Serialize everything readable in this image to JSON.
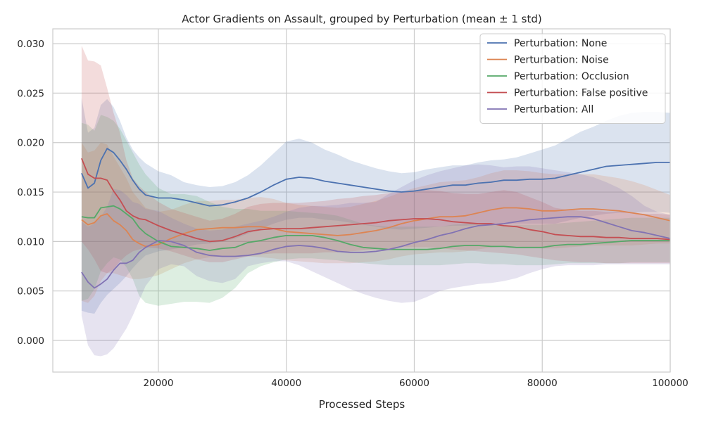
{
  "chart_data": {
    "type": "line",
    "title": "Actor Gradients on Assault, grouped by Perturbation (mean ± 1 std)",
    "xlabel": "Processed Steps",
    "ylabel": "",
    "xlim": [
      3500,
      100000
    ],
    "ylim": [
      -0.0032,
      0.0315
    ],
    "xticks": [
      20000,
      40000,
      60000,
      80000,
      100000
    ],
    "xtick_labels": [
      "20000",
      "40000",
      "60000",
      "80000",
      "100000"
    ],
    "yticks": [
      0.0,
      0.005,
      0.01,
      0.015,
      0.02,
      0.025,
      0.03
    ],
    "ytick_labels": [
      "0.000",
      "0.005",
      "0.010",
      "0.015",
      "0.020",
      "0.025",
      "0.030"
    ],
    "grid": true,
    "legend_position": "top-right",
    "x": [
      8000,
      9000,
      10000,
      11000,
      12000,
      13000,
      14000,
      15000,
      16000,
      17000,
      18000,
      20000,
      22000,
      24000,
      26000,
      28000,
      30000,
      32000,
      34000,
      36000,
      38000,
      40000,
      42000,
      44000,
      46000,
      48000,
      50000,
      52000,
      54000,
      56000,
      58000,
      60000,
      62000,
      64000,
      66000,
      68000,
      70000,
      72000,
      74000,
      76000,
      78000,
      80000,
      82000,
      84000,
      86000,
      88000,
      90000,
      92000,
      94000,
      96000,
      98000,
      100000
    ],
    "series": [
      {
        "name": "Perturbation: None",
        "color": "#4c72b0",
        "mean": [
          0.0169,
          0.0154,
          0.0159,
          0.0182,
          0.0194,
          0.019,
          0.0182,
          0.0173,
          0.0162,
          0.0153,
          0.0147,
          0.0144,
          0.0144,
          0.0142,
          0.0139,
          0.0136,
          0.0137,
          0.014,
          0.0144,
          0.015,
          0.0157,
          0.0163,
          0.0165,
          0.0164,
          0.0161,
          0.0159,
          0.0157,
          0.0155,
          0.0153,
          0.0151,
          0.015,
          0.0151,
          0.0153,
          0.0155,
          0.0157,
          0.0157,
          0.0159,
          0.016,
          0.0162,
          0.0162,
          0.0163,
          0.0163,
          0.0164,
          0.0167,
          0.017,
          0.0173,
          0.0176,
          0.0177,
          0.0178,
          0.0179,
          0.018,
          0.018
        ],
        "lower": [
          0.003,
          0.0028,
          0.0027,
          0.0038,
          0.0046,
          0.0052,
          0.0058,
          0.0065,
          0.0073,
          0.008,
          0.0086,
          0.009,
          0.0092,
          0.0094,
          0.0097,
          0.0098,
          0.01,
          0.0103,
          0.0108,
          0.0113,
          0.0118,
          0.0122,
          0.0124,
          0.0124,
          0.0122,
          0.0121,
          0.0119,
          0.0117,
          0.0115,
          0.0113,
          0.0112,
          0.0113,
          0.0114,
          0.0115,
          0.0116,
          0.0116,
          0.0117,
          0.0117,
          0.0118,
          0.0118,
          0.0118,
          0.0118,
          0.0118,
          0.0121,
          0.0124,
          0.0126,
          0.0128,
          0.0129,
          0.0129,
          0.013,
          0.013,
          0.0129
        ],
        "upper": [
          0.0245,
          0.021,
          0.0215,
          0.0238,
          0.0244,
          0.0236,
          0.0222,
          0.0205,
          0.0193,
          0.0185,
          0.0179,
          0.0171,
          0.0167,
          0.016,
          0.0157,
          0.0155,
          0.0156,
          0.016,
          0.0167,
          0.0177,
          0.0189,
          0.0201,
          0.0204,
          0.02,
          0.0193,
          0.0188,
          0.0182,
          0.0178,
          0.0174,
          0.0171,
          0.0169,
          0.017,
          0.0173,
          0.0175,
          0.0177,
          0.0177,
          0.018,
          0.0182,
          0.0183,
          0.0185,
          0.0189,
          0.0193,
          0.0197,
          0.0204,
          0.0211,
          0.0216,
          0.0222,
          0.0227,
          0.023,
          0.0231,
          0.0231,
          0.023
        ]
      },
      {
        "name": "Perturbation: Noise",
        "color": "#dd8452",
        "mean": [
          0.0122,
          0.0117,
          0.0119,
          0.0126,
          0.0128,
          0.0121,
          0.0117,
          0.0111,
          0.0102,
          0.0098,
          0.0095,
          0.0097,
          0.0103,
          0.0108,
          0.0112,
          0.0113,
          0.0114,
          0.0114,
          0.0115,
          0.0115,
          0.0113,
          0.011,
          0.0109,
          0.0108,
          0.0107,
          0.0106,
          0.0107,
          0.0109,
          0.0111,
          0.0114,
          0.0118,
          0.0121,
          0.0123,
          0.0125,
          0.0125,
          0.0126,
          0.0129,
          0.0132,
          0.0134,
          0.0134,
          0.0133,
          0.0131,
          0.0131,
          0.0132,
          0.0133,
          0.0133,
          0.0132,
          0.0131,
          0.0129,
          0.0127,
          0.0124,
          0.0121
        ],
        "lower": [
          0.004,
          0.0038,
          0.0045,
          0.006,
          0.0068,
          0.0068,
          0.0066,
          0.0064,
          0.0062,
          0.0062,
          0.0063,
          0.0066,
          0.0072,
          0.0078,
          0.0082,
          0.0084,
          0.0085,
          0.0085,
          0.0085,
          0.0084,
          0.0083,
          0.0081,
          0.008,
          0.0079,
          0.0078,
          0.0078,
          0.0078,
          0.0079,
          0.008,
          0.0082,
          0.0085,
          0.0087,
          0.0088,
          0.0089,
          0.0089,
          0.009,
          0.0092,
          0.0094,
          0.0095,
          0.0095,
          0.0094,
          0.0093,
          0.0093,
          0.0094,
          0.0095,
          0.0096,
          0.0096,
          0.0096,
          0.0096,
          0.0097,
          0.0098,
          0.0098
        ],
        "upper": [
          0.02,
          0.019,
          0.0192,
          0.02,
          0.0198,
          0.0186,
          0.0175,
          0.0164,
          0.015,
          0.0142,
          0.0134,
          0.013,
          0.0132,
          0.0137,
          0.0141,
          0.0141,
          0.0142,
          0.0142,
          0.0144,
          0.0145,
          0.0143,
          0.0139,
          0.0137,
          0.0136,
          0.0135,
          0.0134,
          0.0135,
          0.0138,
          0.0141,
          0.0145,
          0.015,
          0.0154,
          0.0157,
          0.016,
          0.0161,
          0.0162,
          0.0165,
          0.0169,
          0.0172,
          0.0172,
          0.0171,
          0.0169,
          0.0168,
          0.0168,
          0.0168,
          0.0168,
          0.0166,
          0.0164,
          0.0161,
          0.0157,
          0.0152,
          0.0147
        ]
      },
      {
        "name": "Perturbation: Occlusion",
        "color": "#55a868",
        "mean": [
          0.0125,
          0.0124,
          0.0124,
          0.0134,
          0.0135,
          0.0136,
          0.0133,
          0.0128,
          0.0123,
          0.0114,
          0.0108,
          0.01,
          0.0095,
          0.0094,
          0.0093,
          0.0091,
          0.0093,
          0.0094,
          0.0099,
          0.0101,
          0.0104,
          0.0106,
          0.0106,
          0.0106,
          0.0104,
          0.0101,
          0.0097,
          0.0094,
          0.0093,
          0.0092,
          0.0092,
          0.0092,
          0.0092,
          0.0093,
          0.0095,
          0.0096,
          0.0096,
          0.0095,
          0.0095,
          0.0094,
          0.0094,
          0.0094,
          0.0096,
          0.0097,
          0.0097,
          0.0098,
          0.0099,
          0.01,
          0.0101,
          0.0101,
          0.0101,
          0.0101
        ],
        "lower": [
          0.004,
          0.0042,
          0.0052,
          0.007,
          0.0078,
          0.0084,
          0.0082,
          0.0074,
          0.0062,
          0.0045,
          0.0038,
          0.0035,
          0.0037,
          0.0039,
          0.0039,
          0.0038,
          0.0043,
          0.0053,
          0.0068,
          0.0075,
          0.0079,
          0.0082,
          0.0083,
          0.0083,
          0.0082,
          0.0081,
          0.0079,
          0.0078,
          0.0077,
          0.0076,
          0.0076,
          0.0076,
          0.0076,
          0.0076,
          0.0077,
          0.0078,
          0.0078,
          0.0077,
          0.0077,
          0.0076,
          0.0076,
          0.0076,
          0.0077,
          0.0078,
          0.0078,
          0.0078,
          0.0078,
          0.0078,
          0.0079,
          0.0079,
          0.0079,
          0.0079
        ],
        "upper": [
          0.022,
          0.0218,
          0.0212,
          0.0228,
          0.0226,
          0.0222,
          0.0214,
          0.0202,
          0.019,
          0.0178,
          0.0168,
          0.0154,
          0.0148,
          0.0148,
          0.0146,
          0.014,
          0.0135,
          0.0133,
          0.0133,
          0.0131,
          0.0131,
          0.0131,
          0.013,
          0.0129,
          0.0128,
          0.0126,
          0.0122,
          0.0118,
          0.0116,
          0.0115,
          0.0115,
          0.0115,
          0.0115,
          0.0115,
          0.0117,
          0.0118,
          0.0118,
          0.0117,
          0.0117,
          0.0117,
          0.0117,
          0.0117,
          0.0118,
          0.0119,
          0.012,
          0.0121,
          0.0122,
          0.0123,
          0.0124,
          0.0124,
          0.0124,
          0.0124
        ]
      },
      {
        "name": "Perturbation: False positive",
        "color": "#c44e52",
        "mean": [
          0.0184,
          0.0168,
          0.0164,
          0.0164,
          0.0162,
          0.0151,
          0.0142,
          0.0131,
          0.0126,
          0.0123,
          0.0122,
          0.0116,
          0.0111,
          0.0107,
          0.0103,
          0.01,
          0.0101,
          0.0105,
          0.011,
          0.0112,
          0.0113,
          0.0113,
          0.0113,
          0.0114,
          0.0115,
          0.0116,
          0.0117,
          0.0118,
          0.0119,
          0.0121,
          0.0122,
          0.0123,
          0.0123,
          0.0122,
          0.012,
          0.0119,
          0.0118,
          0.0118,
          0.0116,
          0.0115,
          0.0112,
          0.011,
          0.0107,
          0.0106,
          0.0105,
          0.0105,
          0.0104,
          0.0104,
          0.0103,
          0.0103,
          0.0103,
          0.0102
        ],
        "lower": [
          0.01,
          0.0092,
          0.0082,
          0.007,
          0.0068,
          0.0072,
          0.008,
          0.0086,
          0.009,
          0.0092,
          0.0094,
          0.0093,
          0.009,
          0.0086,
          0.0082,
          0.0079,
          0.0079,
          0.0082,
          0.0085,
          0.0087,
          0.0088,
          0.0088,
          0.0088,
          0.0088,
          0.0089,
          0.0089,
          0.009,
          0.0091,
          0.0092,
          0.0093,
          0.0094,
          0.0094,
          0.0094,
          0.0093,
          0.0092,
          0.0091,
          0.009,
          0.0089,
          0.0088,
          0.0087,
          0.0085,
          0.0083,
          0.0081,
          0.008,
          0.0079,
          0.0079,
          0.0078,
          0.0078,
          0.0078,
          0.0078,
          0.0078,
          0.0078
        ],
        "upper": [
          0.0298,
          0.0283,
          0.0282,
          0.0278,
          0.0255,
          0.023,
          0.021,
          0.0182,
          0.0164,
          0.0156,
          0.015,
          0.014,
          0.0133,
          0.0129,
          0.0125,
          0.0121,
          0.0123,
          0.0128,
          0.0135,
          0.0138,
          0.0139,
          0.0139,
          0.0139,
          0.014,
          0.0141,
          0.0143,
          0.0144,
          0.0146,
          0.0147,
          0.0149,
          0.015,
          0.0151,
          0.0152,
          0.0151,
          0.0149,
          0.0148,
          0.0148,
          0.015,
          0.0152,
          0.015,
          0.0145,
          0.014,
          0.0134,
          0.0132,
          0.0131,
          0.0131,
          0.013,
          0.013,
          0.0129,
          0.0128,
          0.0128,
          0.0127
        ]
      },
      {
        "name": "Perturbation: All",
        "color": "#8172b3",
        "mean": [
          0.0069,
          0.0059,
          0.0053,
          0.0057,
          0.0062,
          0.0071,
          0.0078,
          0.0078,
          0.0081,
          0.0089,
          0.0094,
          0.0101,
          0.01,
          0.0096,
          0.0089,
          0.0086,
          0.0085,
          0.0085,
          0.0086,
          0.0088,
          0.0092,
          0.0095,
          0.0096,
          0.0095,
          0.0093,
          0.009,
          0.0089,
          0.0089,
          0.009,
          0.0092,
          0.0095,
          0.0099,
          0.0102,
          0.0106,
          0.0109,
          0.0113,
          0.0116,
          0.0117,
          0.0118,
          0.012,
          0.0122,
          0.0123,
          0.0124,
          0.0125,
          0.0125,
          0.0123,
          0.0119,
          0.0115,
          0.0111,
          0.0109,
          0.0106,
          0.0103
        ],
        "lower": [
          0.0025,
          -0.0005,
          -0.0015,
          -0.0016,
          -0.0014,
          -0.0008,
          0.0002,
          0.0012,
          0.0025,
          0.004,
          0.0055,
          0.0072,
          0.0077,
          0.0075,
          0.0065,
          0.006,
          0.0058,
          0.0062,
          0.0075,
          0.0078,
          0.008,
          0.008,
          0.0076,
          0.007,
          0.0064,
          0.0058,
          0.0052,
          0.0047,
          0.0043,
          0.004,
          0.0038,
          0.0039,
          0.0044,
          0.005,
          0.0053,
          0.0055,
          0.0057,
          0.0058,
          0.006,
          0.0063,
          0.0068,
          0.0072,
          0.0075,
          0.0076,
          0.0076,
          0.0076,
          0.0077,
          0.0077,
          0.0077,
          0.0077,
          0.0077,
          0.0077
        ],
        "upper": [
          0.012,
          0.0115,
          0.0118,
          0.0125,
          0.0135,
          0.0153,
          0.0152,
          0.0147,
          0.014,
          0.0138,
          0.0133,
          0.0131,
          0.0124,
          0.0118,
          0.0113,
          0.0111,
          0.0112,
          0.0115,
          0.0118,
          0.0121,
          0.0125,
          0.013,
          0.0134,
          0.0136,
          0.0136,
          0.0137,
          0.0139,
          0.0139,
          0.014,
          0.0148,
          0.0155,
          0.0162,
          0.0167,
          0.0171,
          0.0174,
          0.0177,
          0.0178,
          0.0177,
          0.0175,
          0.0176,
          0.0176,
          0.0174,
          0.0172,
          0.017,
          0.0168,
          0.0165,
          0.016,
          0.0154,
          0.0146,
          0.0136,
          0.013,
          0.0127
        ]
      }
    ]
  }
}
